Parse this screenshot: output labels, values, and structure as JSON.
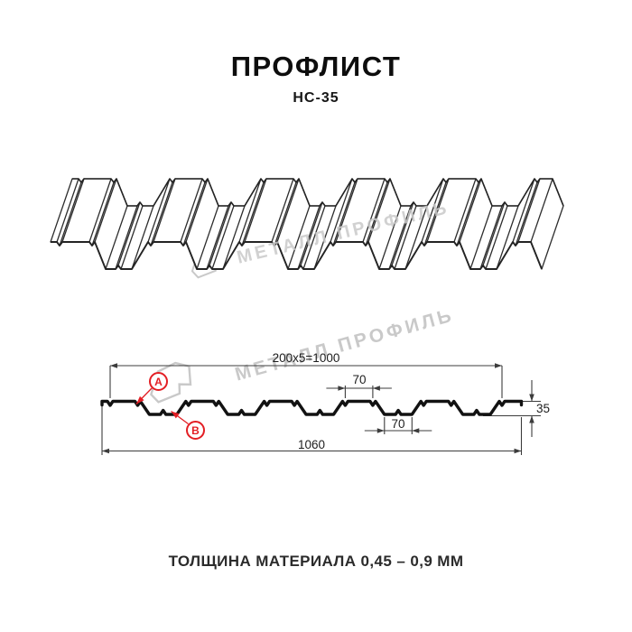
{
  "header": {
    "title": "ПРОФЛИСТ",
    "subtitle": "НС-35"
  },
  "watermark": {
    "text": "МЕТАЛЛ ПРОФИЛЬ",
    "logo_icon": "metal-profil-logo-icon"
  },
  "section": {
    "dim_module_width": "200x5=1000",
    "dim_top_flat_width": "70",
    "dim_bottom_flat_width": "70",
    "dim_overall_width": "1060",
    "dim_profile_height": "35",
    "marker_a": "A",
    "marker_b": "B"
  },
  "footer": {
    "thickness_note": "ТОЛЩИНА МАТЕРИАЛА 0,45 – 0,9 ММ"
  },
  "colors": {
    "accent_red": "#e31e24",
    "watermark_gray": "#c9c9c9",
    "line_dark": "#1a1a1a"
  }
}
